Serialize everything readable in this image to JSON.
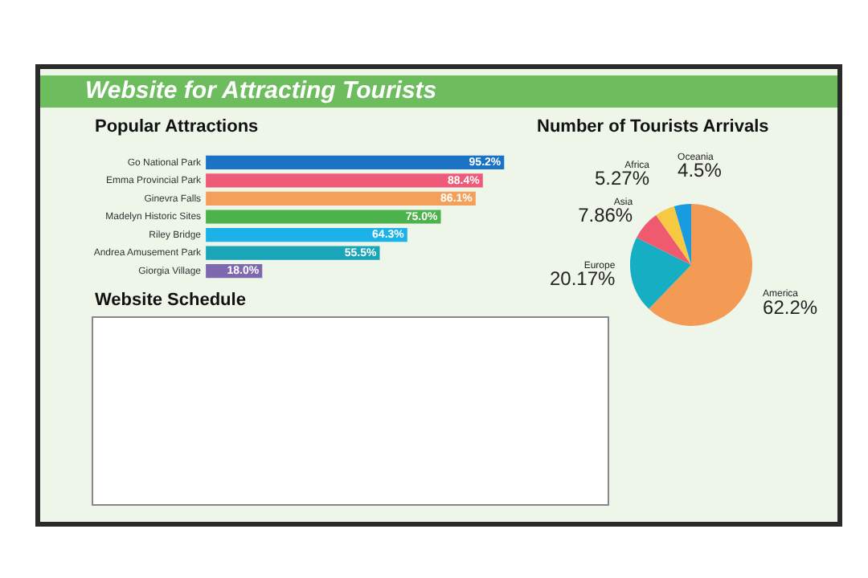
{
  "chart_data": [
    {
      "type": "other",
      "title": "Website for Attracting Tourists"
    },
    {
      "type": "bar",
      "title": "Popular Attractions",
      "orientation": "horizontal",
      "tick_labels": "y",
      "grid": false,
      "legend": false,
      "categories": [
        "Go National Park",
        "Emma Provincial Park",
        "Ginevra Falls",
        "Madelyn Historic Sites",
        "Riley Bridge",
        "Andrea Amusement Park",
        "Giorgia Village"
      ],
      "values": [
        95.2,
        88.4,
        86.1,
        75.0,
        64.3,
        55.5,
        18.0
      ],
      "colors": [
        "#1a73c6",
        "#ee5a78",
        "#f5a05a",
        "#4cb24c",
        "#1ab2e8",
        "#1aa6b8",
        "#7e68b0"
      ],
      "value_labels": [
        "95.2%",
        "88.4%",
        "86.1%",
        "75.0%",
        "64.3%",
        "55.5%",
        "18.0%"
      ]
    },
    {
      "type": "pie",
      "title": "Number of Tourists Arrivals",
      "legend": false,
      "categories": [
        "America",
        "Europe",
        "Asia",
        "Africa",
        "Oceania"
      ],
      "values": [
        62.2,
        20.17,
        7.86,
        5.27,
        4.5
      ],
      "colors": [
        "#f39a55",
        "#15aec3",
        "#ef5a6e",
        "#f7c842",
        "#1a9be0"
      ],
      "value_labels": [
        "62.2%",
        "20.17%",
        "7.86%",
        "5.27%",
        "4.5%"
      ]
    },
    {
      "type": "other",
      "title": "Website Schedule"
    }
  ]
}
